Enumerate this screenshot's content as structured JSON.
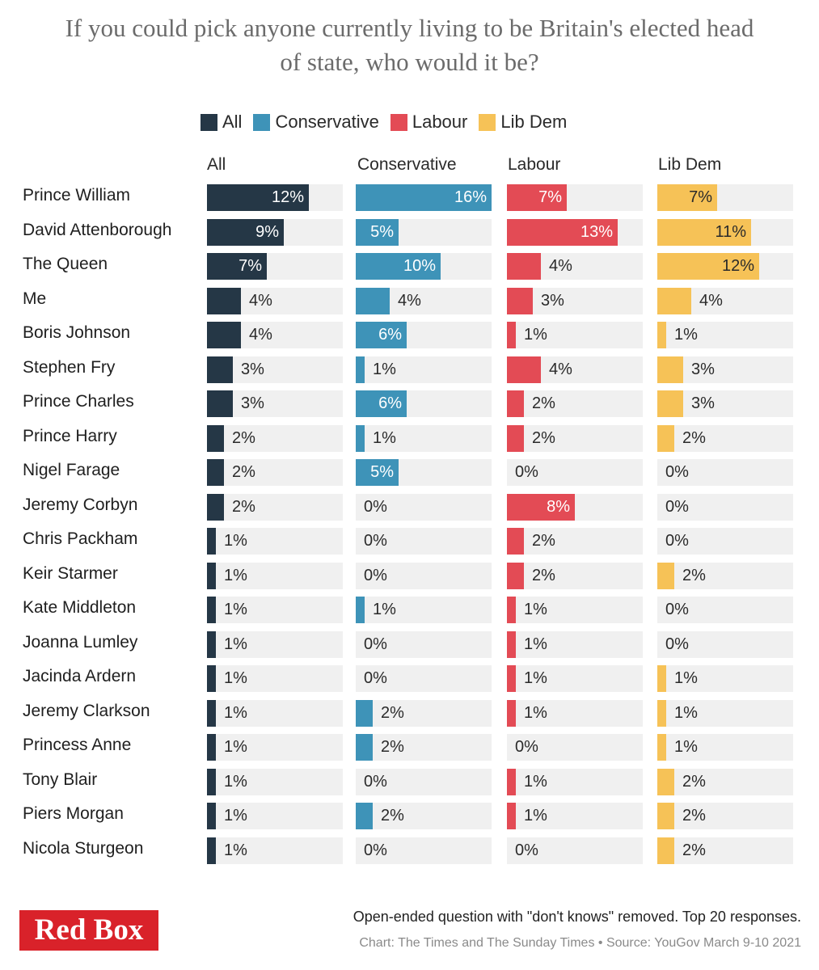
{
  "title_line1": "If you could pick anyone currently living to be Britain's elected head",
  "title_line2": "of state, who would it be?",
  "colors": {
    "All": "#253746",
    "Conservative": "#3e93b8",
    "Labour": "#e34b55",
    "Lib Dem": "#f6c257",
    "track": "#f0f0f0"
  },
  "footnote": "Open-ended question with \"don't knows\" removed. Top 20 responses.",
  "source": "Chart: The Times and The Sunday Times • Source: YouGov March 9-10 2021",
  "logo": "Red Box",
  "chart_data": {
    "type": "bar",
    "title": "If you could pick anyone currently living to be Britain's elected head of state, who would it be?",
    "xlabel": "",
    "ylabel": "",
    "xlim": [
      0,
      16
    ],
    "unit": "%",
    "categories": [
      "Prince William",
      "David Attenborough",
      "The Queen",
      "Me",
      "Boris Johnson",
      "Stephen Fry",
      "Prince Charles",
      "Prince Harry",
      "Nigel Farage",
      "Jeremy Corbyn",
      "Chris Packham",
      "Keir Starmer",
      "Kate Middleton",
      "Joanna Lumley",
      "Jacinda Ardern",
      "Jeremy Clarkson",
      "Princess Anne",
      "Tony Blair",
      "Piers Morgan",
      "Nicola Sturgeon"
    ],
    "legend": [
      "All",
      "Conservative",
      "Labour",
      "Lib Dem"
    ],
    "series": [
      {
        "name": "All",
        "values": [
          12,
          9,
          7,
          4,
          4,
          3,
          3,
          2,
          2,
          2,
          1,
          1,
          1,
          1,
          1,
          1,
          1,
          1,
          1,
          1
        ]
      },
      {
        "name": "Conservative",
        "values": [
          16,
          5,
          10,
          4,
          6,
          1,
          6,
          1,
          5,
          0,
          0,
          0,
          1,
          0,
          0,
          2,
          2,
          0,
          2,
          0
        ]
      },
      {
        "name": "Labour",
        "values": [
          7,
          13,
          4,
          3,
          1,
          4,
          2,
          2,
          0,
          8,
          2,
          2,
          1,
          1,
          1,
          1,
          0,
          1,
          1,
          0
        ]
      },
      {
        "name": "Lib Dem",
        "values": [
          7,
          11,
          12,
          4,
          1,
          3,
          3,
          2,
          0,
          0,
          0,
          2,
          0,
          0,
          1,
          1,
          1,
          2,
          2,
          2
        ]
      }
    ]
  }
}
